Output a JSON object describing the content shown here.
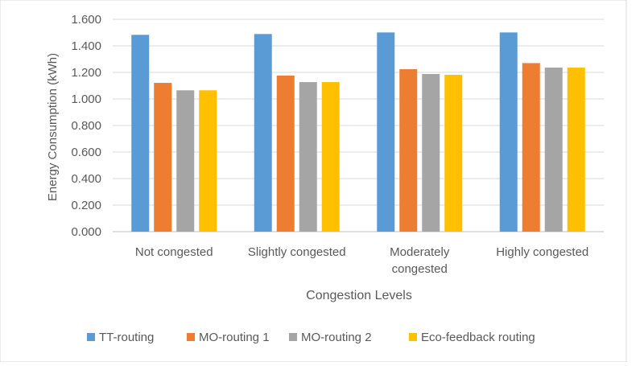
{
  "chart_data": {
    "type": "bar",
    "title": "",
    "xlabel": "Congestion Levels",
    "ylabel": "Energy Consumption (kWh)",
    "ylim": [
      0,
      1.6
    ],
    "yticks": [
      "0.000",
      "0.200",
      "0.400",
      "0.600",
      "0.800",
      "1.000",
      "1.200",
      "1.400",
      "1.600"
    ],
    "grid": true,
    "legend_position": "bottom",
    "categories": [
      [
        "Not congested"
      ],
      [
        "Slightly congested"
      ],
      [
        "Moderately",
        "congested"
      ],
      [
        "Highly congested"
      ]
    ],
    "series": [
      {
        "name": "TT-routing",
        "color": "#5B9BD5",
        "values": [
          1.483,
          1.489,
          1.501,
          1.501
        ]
      },
      {
        "name": "MO-routing 1",
        "color": "#ED7D31",
        "values": [
          1.121,
          1.176,
          1.224,
          1.27
        ]
      },
      {
        "name": "MO-routing 2",
        "color": "#A5A5A5",
        "values": [
          1.065,
          1.127,
          1.188,
          1.236
        ]
      },
      {
        "name": "Eco-feedback routing",
        "color": "#FFC000",
        "values": [
          1.065,
          1.127,
          1.182,
          1.236
        ]
      }
    ]
  }
}
